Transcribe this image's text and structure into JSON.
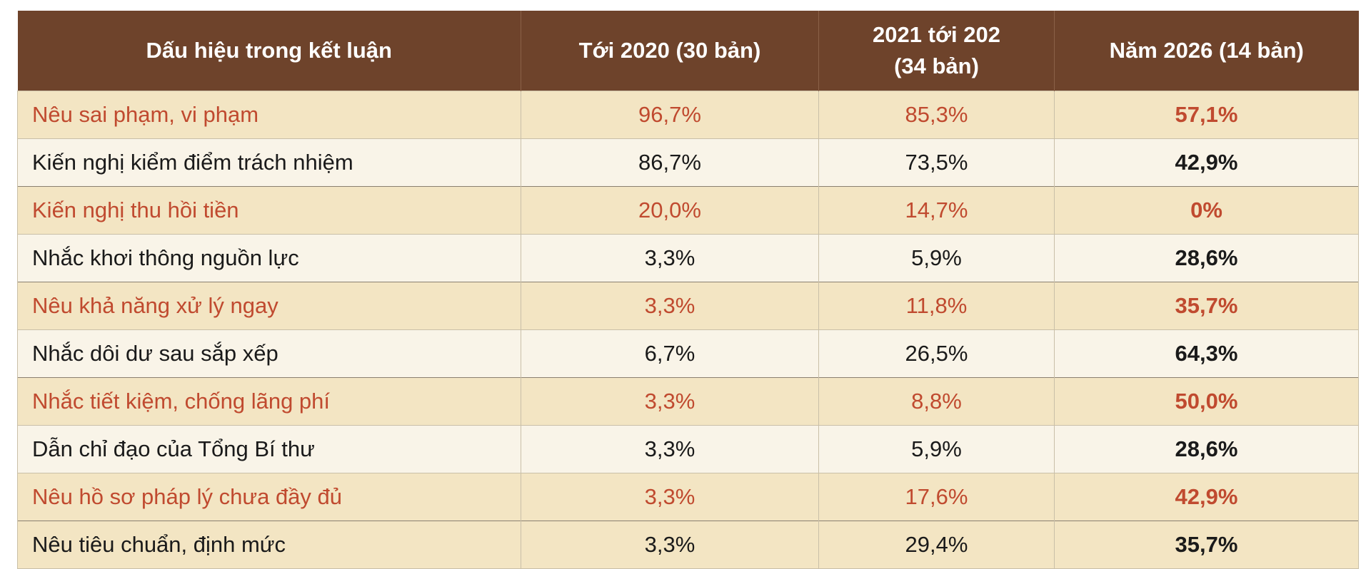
{
  "table": {
    "headers": [
      [
        "Dấu hiệu trong kết luận"
      ],
      [
        "Tới 2020 (30 bản)"
      ],
      [
        "2021 tới 202",
        "(34 bản)"
      ],
      [
        "Năm 2026 (14 bản)"
      ]
    ],
    "rows": [
      [
        "Nêu sai phạm, vi phạm",
        "96,7%",
        "85,3%",
        "57,1%"
      ],
      [
        "Kiến nghị kiểm điểm trách nhiệm",
        "86,7%",
        "73,5%",
        "42,9%"
      ],
      [
        "Kiến nghị thu hồi tiền",
        "20,0%",
        "14,7%",
        "0%"
      ],
      [
        "Nhắc khơi thông nguồn lực",
        "3,3%",
        "5,9%",
        "28,6%"
      ],
      [
        "Nêu khả năng xử lý ngay",
        "3,3%",
        "11,8%",
        "35,7%"
      ],
      [
        "Nhắc dôi dư sau sắp xếp",
        "6,7%",
        "26,5%",
        "64,3%"
      ],
      [
        "Nhắc tiết kiệm, chống lãng phí",
        "3,3%",
        "8,8%",
        "50,0%"
      ],
      [
        "Dẫn chỉ đạo của Tổng Bí thư",
        "3,3%",
        "5,9%",
        "28,6%"
      ],
      [
        "Nêu hồ sơ pháp lý chưa đầy đủ",
        "3,3%",
        "17,6%",
        "42,9%"
      ],
      [
        "Nêu tiêu chuẩn, định mức",
        "3,3%",
        "29,4%",
        "35,7%"
      ]
    ],
    "colors": {
      "header_bg": "#6e432b",
      "odd_row_bg": "#f3e5c3",
      "even_row_bg": "#f9f4e8",
      "highlight_text": "#c04a2f",
      "normal_text": "#1a1a1a"
    }
  }
}
